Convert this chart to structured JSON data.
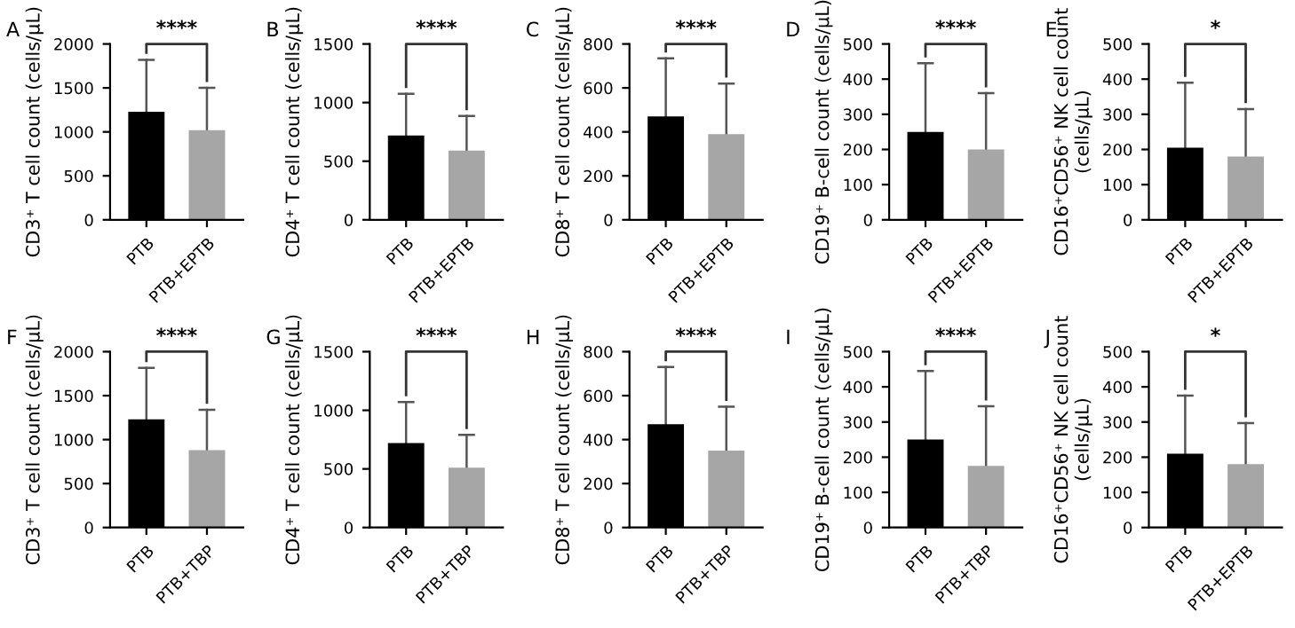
{
  "chart_data": [
    {
      "type": "bar",
      "title": "A",
      "ylabel": "CD3⁺ T cell count (cells/μL)",
      "categories": [
        "PTB",
        "PTB+EPTB"
      ],
      "values": [
        1230,
        1020
      ],
      "colors": [
        "#000000",
        "#a6a6a6"
      ],
      "errors": [
        [
          1230,
          1820
        ],
        [
          1020,
          1500
        ]
      ],
      "ylim": [
        0,
        2000
      ],
      "yticks": [
        0,
        500,
        1000,
        1500,
        2000
      ],
      "annotations": [
        "****"
      ],
      "grid": false,
      "legend": false
    },
    {
      "type": "bar",
      "title": "B",
      "ylabel": "CD4⁺ T cell count (cells/μL)",
      "categories": [
        "PTB",
        "PTB+EPTB"
      ],
      "values": [
        720,
        590
      ],
      "colors": [
        "#000000",
        "#a6a6a6"
      ],
      "errors": [
        [
          720,
          1075
        ],
        [
          590,
          885
        ]
      ],
      "ylim": [
        0,
        1500
      ],
      "yticks": [
        0,
        500,
        1000,
        1500
      ],
      "annotations": [
        "****"
      ],
      "grid": false,
      "legend": false
    },
    {
      "type": "bar",
      "title": "C",
      "ylabel": "CD8⁺ T cell count (cells/μL)",
      "categories": [
        "PTB",
        "PTB+EPTB"
      ],
      "values": [
        470,
        390
      ],
      "colors": [
        "#000000",
        "#a6a6a6"
      ],
      "errors": [
        [
          470,
          735
        ],
        [
          390,
          620
        ]
      ],
      "ylim": [
        0,
        800
      ],
      "yticks": [
        0,
        200,
        400,
        600,
        800
      ],
      "annotations": [
        "****"
      ],
      "grid": false,
      "legend": false
    },
    {
      "type": "bar",
      "title": "D",
      "ylabel": "CD19⁺ B-cell count (cells/μL)",
      "categories": [
        "PTB",
        "PTB+EPTB"
      ],
      "values": [
        250,
        200
      ],
      "colors": [
        "#000000",
        "#a6a6a6"
      ],
      "errors": [
        [
          250,
          445
        ],
        [
          200,
          360
        ]
      ],
      "ylim": [
        0,
        500
      ],
      "yticks": [
        0,
        100,
        200,
        300,
        400,
        500
      ],
      "annotations": [
        "****"
      ],
      "grid": false,
      "legend": false
    },
    {
      "type": "bar",
      "title": "E",
      "ylabel": "CD16⁺CD56⁺ NK cell count\n(cells/μL)",
      "categories": [
        "PTB",
        "PTB+EPTB"
      ],
      "values": [
        205,
        180
      ],
      "colors": [
        "#000000",
        "#a6a6a6"
      ],
      "errors": [
        [
          205,
          390
        ],
        [
          180,
          315
        ]
      ],
      "ylim": [
        0,
        500
      ],
      "yticks": [
        0,
        100,
        200,
        300,
        400,
        500
      ],
      "annotations": [
        "*"
      ],
      "grid": false,
      "legend": false
    },
    {
      "type": "bar",
      "title": "F",
      "ylabel": "CD3⁺ T cell count (cells/μL)",
      "categories": [
        "PTB",
        "PTB+TBP"
      ],
      "values": [
        1230,
        880
      ],
      "colors": [
        "#000000",
        "#a6a6a6"
      ],
      "errors": [
        [
          1230,
          1815
        ],
        [
          880,
          1340
        ]
      ],
      "ylim": [
        0,
        2000
      ],
      "yticks": [
        0,
        500,
        1000,
        1500,
        2000
      ],
      "annotations": [
        "****"
      ],
      "grid": false,
      "legend": false
    },
    {
      "type": "bar",
      "title": "G",
      "ylabel": "CD4⁺ T cell count (cells/μL)",
      "categories": [
        "PTB",
        "PTB+TBP"
      ],
      "values": [
        720,
        510
      ],
      "colors": [
        "#000000",
        "#a6a6a6"
      ],
      "errors": [
        [
          720,
          1070
        ],
        [
          510,
          790
        ]
      ],
      "ylim": [
        0,
        1500
      ],
      "yticks": [
        0,
        500,
        1000,
        1500
      ],
      "annotations": [
        "****"
      ],
      "grid": false,
      "legend": false
    },
    {
      "type": "bar",
      "title": "H",
      "ylabel": "CD8⁺ T cell count (cells/μL)",
      "categories": [
        "PTB",
        "PTB+TBP"
      ],
      "values": [
        470,
        350
      ],
      "colors": [
        "#000000",
        "#a6a6a6"
      ],
      "errors": [
        [
          470,
          730
        ],
        [
          350,
          550
        ]
      ],
      "ylim": [
        0,
        800
      ],
      "yticks": [
        0,
        200,
        400,
        600,
        800
      ],
      "annotations": [
        "****"
      ],
      "grid": false,
      "legend": false
    },
    {
      "type": "bar",
      "title": "I",
      "ylabel": "CD19⁺ B-cell count (cells/μL)",
      "categories": [
        "PTB",
        "PTB+TBP"
      ],
      "values": [
        250,
        175
      ],
      "colors": [
        "#000000",
        "#a6a6a6"
      ],
      "errors": [
        [
          250,
          445
        ],
        [
          175,
          345
        ]
      ],
      "ylim": [
        0,
        500
      ],
      "yticks": [
        0,
        100,
        200,
        300,
        400,
        500
      ],
      "annotations": [
        "****"
      ],
      "grid": false,
      "legend": false
    },
    {
      "type": "bar",
      "title": "J",
      "ylabel": "CD16⁺CD56⁺ NK cell count\n(cells/μL)",
      "categories": [
        "PTB",
        "PTB+EPTB"
      ],
      "values": [
        210,
        180
      ],
      "colors": [
        "#000000",
        "#a6a6a6"
      ],
      "errors": [
        [
          210,
          375
        ],
        [
          180,
          297
        ]
      ],
      "ylim": [
        0,
        500
      ],
      "yticks": [
        0,
        100,
        200,
        300,
        400,
        500
      ],
      "annotations": [
        "*"
      ],
      "grid": false,
      "legend": false
    }
  ]
}
